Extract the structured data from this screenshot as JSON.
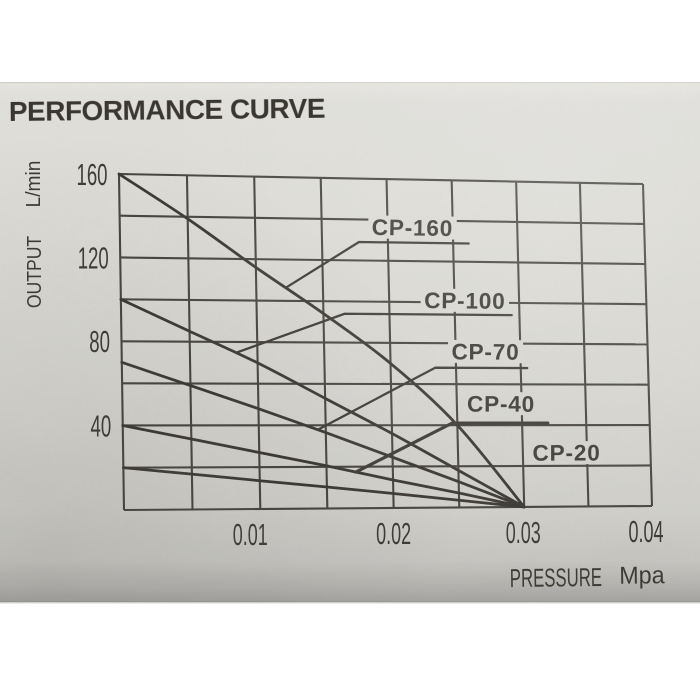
{
  "page": {
    "background": "#ffffff",
    "paper_color": "#e6e5df",
    "ink_color": "#3a3731"
  },
  "title": "PERFORMANCE CURVE",
  "chart_data": {
    "type": "line",
    "title": "PERFORMANCE CURVE",
    "xlabel": "PRESSURE",
    "x_unit": "Mpa",
    "ylabel": "OUTPUT",
    "y_unit": "L/min",
    "xlim": [
      0,
      0.04
    ],
    "ylim": [
      0,
      160
    ],
    "x_grid_step": 0.005,
    "y_grid_step": 20,
    "grid": true,
    "legend_position": "inline-labels",
    "xticks": [
      {
        "value": 0.01,
        "label": "0.01"
      },
      {
        "value": 0.02,
        "label": "0.02"
      },
      {
        "value": 0.03,
        "label": "0.03"
      },
      {
        "value": 0.04,
        "label": "0.04"
      }
    ],
    "yticks": [
      {
        "value": 40,
        "label": "40"
      },
      {
        "value": 80,
        "label": "80"
      },
      {
        "value": 120,
        "label": "120"
      },
      {
        "value": 160,
        "label": "160"
      }
    ],
    "series": [
      {
        "name": "CP-160",
        "points": [
          [
            0,
            160
          ],
          [
            0.005,
            139
          ],
          [
            0.01,
            116
          ],
          [
            0.015,
            94
          ],
          [
            0.02,
            70
          ],
          [
            0.025,
            40
          ],
          [
            0.03,
            0
          ]
        ],
        "label_xy": [
          0.0219,
          136.5
        ],
        "leader": {
          "attach_x": 0.0122,
          "elbow": [
            0.0178,
            129.0
          ],
          "end_x": 0.0262
        }
      },
      {
        "name": "CP-100",
        "points": [
          [
            0,
            100
          ],
          [
            0.005,
            85
          ],
          [
            0.01,
            70
          ],
          [
            0.015,
            53
          ],
          [
            0.02,
            36
          ],
          [
            0.025,
            18
          ],
          [
            0.03,
            0
          ]
        ],
        "label_xy": [
          0.0258,
          101.0
        ],
        "leader": {
          "attach_x": 0.0084,
          "elbow": [
            0.0166,
            94.0
          ],
          "end_x": 0.0294
        }
      },
      {
        "name": "CP-70",
        "points": [
          [
            0,
            70
          ],
          [
            0.005,
            59
          ],
          [
            0.01,
            48
          ],
          [
            0.015,
            36.5
          ],
          [
            0.02,
            24.5
          ],
          [
            0.025,
            12.5
          ],
          [
            0.03,
            0
          ]
        ],
        "label_xy": [
          0.0273,
          76.0
        ],
        "leader": {
          "attach_x": 0.0144,
          "elbow": [
            0.0234,
            68.0
          ],
          "end_x": 0.0305
        }
      },
      {
        "name": "CP-40",
        "points": [
          [
            0,
            40
          ],
          [
            0.005,
            33.5
          ],
          [
            0.01,
            27
          ],
          [
            0.015,
            20.5
          ],
          [
            0.02,
            13.5
          ],
          [
            0.025,
            7
          ],
          [
            0.03,
            0
          ]
        ],
        "label_xy": [
          0.0284,
          50.5
        ],
        "leader": {
          "attach_x": 0.0172,
          "elbow": [
            0.0246,
            41.0
          ],
          "end_x": 0.032,
          "weight": "thick"
        }
      },
      {
        "name": "CP-20",
        "points": [
          [
            0,
            20
          ],
          [
            0.005,
            16.8
          ],
          [
            0.01,
            13.5
          ],
          [
            0.015,
            10.3
          ],
          [
            0.02,
            7
          ],
          [
            0.025,
            3.5
          ],
          [
            0.03,
            0
          ]
        ],
        "label_xy": [
          0.0334,
          26.5
        ],
        "leader": null
      }
    ]
  }
}
